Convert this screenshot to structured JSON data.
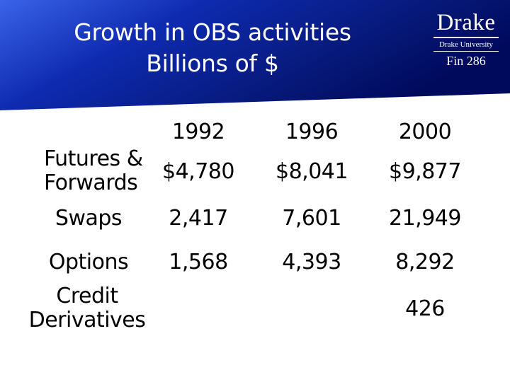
{
  "slide": {
    "title_line1": "Growth in OBS activities",
    "title_line2": "Billions of $"
  },
  "logo": {
    "name": "Drake",
    "university": "Drake University",
    "course": "Fin 286"
  },
  "colors": {
    "banner_dark": "#000a5c",
    "banner_mid": "#0e2bb0",
    "banner_light": "#3a63e8",
    "text": "#000000"
  },
  "table": {
    "columns": [
      "1992",
      "1996",
      "2000"
    ],
    "rows": [
      {
        "label_line1": "Futures &",
        "label_line2": "Forwards",
        "values": [
          "$4,780",
          "$8,041",
          "$9,877"
        ]
      },
      {
        "label_line1": "Swaps",
        "values": [
          "2,417",
          "7,601",
          "21,949"
        ]
      },
      {
        "label_line1": "Options",
        "values": [
          "1,568",
          "4,393",
          "8,292"
        ]
      },
      {
        "label_line1": "Credit",
        "label_line2": "Derivatives",
        "values": [
          "",
          "",
          "426"
        ]
      }
    ]
  }
}
